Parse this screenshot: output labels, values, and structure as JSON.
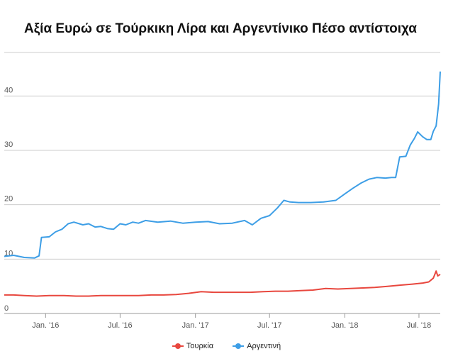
{
  "chart_data": {
    "type": "line",
    "title": "Αξία Ευρώ σε Τούρκικη Λίρα και Αργεντίνικο Πέσο αντίστοιχα",
    "xlabel": "",
    "ylabel": "",
    "ylim": [
      0,
      48
    ],
    "xlim": [
      "2015-09-22",
      "2018-08-22"
    ],
    "grid": true,
    "legend_position": "bottom",
    "y_ticks": [
      0,
      10,
      20,
      30,
      40
    ],
    "x_ticks": [
      {
        "label": "Jan. '16",
        "date": "2016-01-01"
      },
      {
        "label": "Jul. '16",
        "date": "2016-07-01"
      },
      {
        "label": "Jan. '17",
        "date": "2017-01-01"
      },
      {
        "label": "Jul. '17",
        "date": "2017-07-01"
      },
      {
        "label": "Jan. '18",
        "date": "2018-01-01"
      },
      {
        "label": "Jul. '18",
        "date": "2018-07-01"
      }
    ],
    "series": [
      {
        "name": "Τουρκία",
        "color": "#e8473e",
        "points": [
          [
            "2015-09-22",
            3.4
          ],
          [
            "2015-10-15",
            3.4
          ],
          [
            "2015-11-10",
            3.3
          ],
          [
            "2015-12-10",
            3.2
          ],
          [
            "2016-01-10",
            3.3
          ],
          [
            "2016-02-15",
            3.3
          ],
          [
            "2016-03-15",
            3.2
          ],
          [
            "2016-04-15",
            3.2
          ],
          [
            "2016-05-15",
            3.3
          ],
          [
            "2016-06-15",
            3.3
          ],
          [
            "2016-07-15",
            3.3
          ],
          [
            "2016-08-15",
            3.3
          ],
          [
            "2016-09-15",
            3.4
          ],
          [
            "2016-10-15",
            3.4
          ],
          [
            "2016-11-15",
            3.5
          ],
          [
            "2016-12-15",
            3.7
          ],
          [
            "2017-01-15",
            4.0
          ],
          [
            "2017-02-15",
            3.9
          ],
          [
            "2017-03-15",
            3.9
          ],
          [
            "2017-04-15",
            3.9
          ],
          [
            "2017-05-15",
            3.9
          ],
          [
            "2017-06-15",
            4.0
          ],
          [
            "2017-07-15",
            4.1
          ],
          [
            "2017-08-15",
            4.1
          ],
          [
            "2017-09-15",
            4.2
          ],
          [
            "2017-10-15",
            4.3
          ],
          [
            "2017-11-15",
            4.6
          ],
          [
            "2017-12-15",
            4.5
          ],
          [
            "2018-01-15",
            4.6
          ],
          [
            "2018-02-15",
            4.7
          ],
          [
            "2018-03-15",
            4.8
          ],
          [
            "2018-04-15",
            5.0
          ],
          [
            "2018-05-15",
            5.2
          ],
          [
            "2018-06-15",
            5.4
          ],
          [
            "2018-07-10",
            5.6
          ],
          [
            "2018-07-25",
            5.8
          ],
          [
            "2018-08-05",
            6.5
          ],
          [
            "2018-08-12",
            7.8
          ],
          [
            "2018-08-16",
            6.9
          ],
          [
            "2018-08-22",
            7.2
          ]
        ]
      },
      {
        "name": "Αργεντινή",
        "color": "#3d9ee6",
        "points": [
          [
            "2015-09-22",
            10.5
          ],
          [
            "2015-10-15",
            10.7
          ],
          [
            "2015-11-10",
            10.3
          ],
          [
            "2015-12-05",
            10.2
          ],
          [
            "2015-12-16",
            10.6
          ],
          [
            "2015-12-22",
            14.0
          ],
          [
            "2016-01-10",
            14.1
          ],
          [
            "2016-01-25",
            15.0
          ],
          [
            "2016-02-10",
            15.5
          ],
          [
            "2016-02-25",
            16.5
          ],
          [
            "2016-03-10",
            16.8
          ],
          [
            "2016-04-01",
            16.3
          ],
          [
            "2016-04-15",
            16.5
          ],
          [
            "2016-05-01",
            15.9
          ],
          [
            "2016-05-15",
            16.0
          ],
          [
            "2016-06-01",
            15.6
          ],
          [
            "2016-06-15",
            15.5
          ],
          [
            "2016-07-01",
            16.5
          ],
          [
            "2016-07-15",
            16.3
          ],
          [
            "2016-08-01",
            16.8
          ],
          [
            "2016-08-15",
            16.6
          ],
          [
            "2016-09-01",
            17.1
          ],
          [
            "2016-10-01",
            16.8
          ],
          [
            "2016-11-01",
            17.0
          ],
          [
            "2016-12-01",
            16.6
          ],
          [
            "2017-01-01",
            16.8
          ],
          [
            "2017-02-01",
            16.9
          ],
          [
            "2017-03-01",
            16.5
          ],
          [
            "2017-04-01",
            16.6
          ],
          [
            "2017-05-01",
            17.1
          ],
          [
            "2017-05-20",
            16.3
          ],
          [
            "2017-06-10",
            17.5
          ],
          [
            "2017-07-01",
            18.0
          ],
          [
            "2017-07-20",
            19.4
          ],
          [
            "2017-08-05",
            20.8
          ],
          [
            "2017-08-20",
            20.5
          ],
          [
            "2017-09-10",
            20.4
          ],
          [
            "2017-10-10",
            20.4
          ],
          [
            "2017-11-10",
            20.5
          ],
          [
            "2017-12-10",
            20.8
          ],
          [
            "2018-01-01",
            22.0
          ],
          [
            "2018-01-20",
            23.0
          ],
          [
            "2018-02-10",
            24.0
          ],
          [
            "2018-03-01",
            24.7
          ],
          [
            "2018-03-20",
            25.0
          ],
          [
            "2018-04-10",
            24.9
          ],
          [
            "2018-04-25",
            25.0
          ],
          [
            "2018-05-05",
            25.0
          ],
          [
            "2018-05-15",
            28.8
          ],
          [
            "2018-05-30",
            28.9
          ],
          [
            "2018-06-10",
            31.0
          ],
          [
            "2018-06-20",
            32.2
          ],
          [
            "2018-06-28",
            33.4
          ],
          [
            "2018-07-10",
            32.5
          ],
          [
            "2018-07-20",
            32.0
          ],
          [
            "2018-07-30",
            32.0
          ],
          [
            "2018-08-05",
            33.5
          ],
          [
            "2018-08-12",
            34.5
          ],
          [
            "2018-08-18",
            38.5
          ],
          [
            "2018-08-22",
            44.5
          ]
        ]
      }
    ]
  }
}
